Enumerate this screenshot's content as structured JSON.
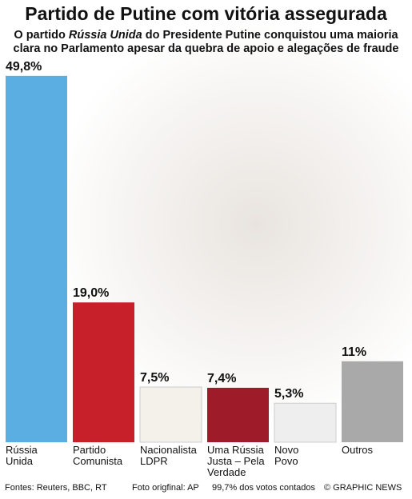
{
  "chart_data": {
    "type": "bar",
    "title": "Partido de Putine com vitória assegurada",
    "subtitle": [
      "O partido ",
      "Rússia Unida",
      " do Presidente Putine conquistou uma maioria clara no Parlamento apesar da quebra de apoio e alegações de fraude"
    ],
    "categories": [
      "Rússia\nUnida",
      "Partido\nComunista",
      "Nacionalista\nLDPR",
      "Uma Rússia\nJusta – Pela\nVerdade",
      "Novo\nPovo",
      "Outros"
    ],
    "values": [
      49.8,
      19.0,
      7.5,
      7.4,
      5.3,
      11
    ],
    "value_labels": [
      "49,8%",
      "19,0%",
      "7,5%",
      "7,4%",
      "5,3%",
      "11%"
    ],
    "colors": [
      "#5aaee2",
      "#c8202a",
      "#f4f1ea",
      "#9e1b2a",
      "#eeeeee",
      "#a9a9a9"
    ],
    "footer": [
      "Fontes: Reuters, BBC, RT",
      "Foto origfinal: AP",
      "99,7% dos votos contados",
      "© GRAPHIC NEWS"
    ]
  }
}
